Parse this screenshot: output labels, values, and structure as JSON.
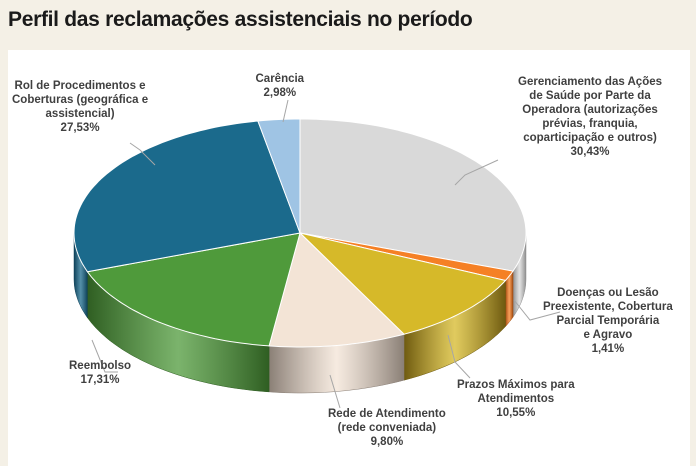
{
  "chart_data": {
    "type": "pie",
    "title": "Perfil das reclamações assistenciais no período",
    "three_d": true,
    "start": "top, clockwise",
    "slices": [
      {
        "label": "Gerenciamento das Ações de Saúde por Parte da Operadora (autorizações prévias, franquia, coparticipação e outros)",
        "lines": [
          "Gerenciamento das Ações",
          "de Saúde por Parte da",
          "Operadora (autorizações",
          "prévias, franquia,",
          "coparticipação e outros)"
        ],
        "value": 30.43,
        "value_label": "30,43%",
        "color": "#d9d9d9",
        "side": "#8c8c8c"
      },
      {
        "label": "Doenças ou Lesão Preexistente, Cobertura Parcial Temporária e Agravo",
        "lines": [
          "Doenças ou Lesão",
          "Preexistente, Cobertura",
          "Parcial Temporária",
          "e Agravo"
        ],
        "value": 1.41,
        "value_label": "1,41%",
        "color": "#f58025",
        "side": "#a04a10"
      },
      {
        "label": "Prazos Máximos para Atendimentos",
        "lines": [
          "Prazos Máximos para",
          "Atendimentos"
        ],
        "value": 10.55,
        "value_label": "10,55%",
        "color": "#d6b929",
        "side": "#6e5a10"
      },
      {
        "label": "Rede de Atendimento (rede conveniada)",
        "lines": [
          "Rede de Atendimento",
          "(rede conveniada)"
        ],
        "value": 9.8,
        "value_label": "9,80%",
        "color": "#f3e4d6",
        "side": "#8a7f76"
      },
      {
        "label": "Reembolso",
        "lines": [
          "Reembolso"
        ],
        "value": 17.31,
        "value_label": "17,31%",
        "color": "#4f9a3b",
        "side": "#2f5e22"
      },
      {
        "label": "Rol de Procedimentos e Coberturas (geográfica e assistencial)",
        "lines": [
          "Rol de Procedimentos e",
          "Coberturas (geográfica e",
          "assistencial)"
        ],
        "value": 27.53,
        "value_label": "27,53%",
        "color": "#1b6a8c",
        "side": "#0f4158"
      },
      {
        "label": "Carência",
        "lines": [
          "Carência"
        ],
        "value": 2.98,
        "value_label": "2,98%",
        "color": "#9fc4e4",
        "side": "#5b7c99"
      }
    ]
  }
}
